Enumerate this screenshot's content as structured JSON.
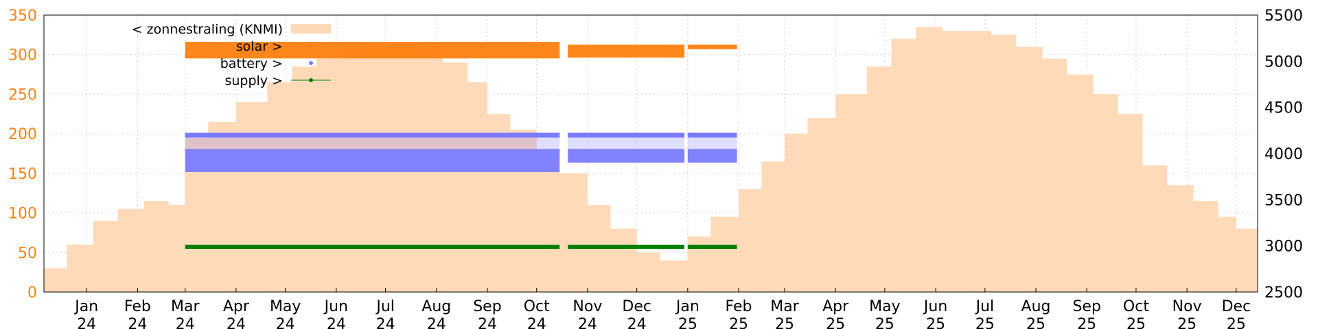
{
  "chart_data": {
    "type": "area",
    "grid": true,
    "legend_position": "top-left",
    "y_left": {
      "range": [
        0,
        350
      ],
      "ticks": [
        0,
        50,
        100,
        150,
        200,
        250,
        300,
        350
      ],
      "color": "#ff7f0e"
    },
    "y_right": {
      "range": [
        2500,
        5500
      ],
      "ticks": [
        2500,
        3000,
        3500,
        4000,
        4500,
        5000,
        5500
      ],
      "color": "#000000"
    },
    "x_ticks": [
      {
        "month": "Jan",
        "year": "24"
      },
      {
        "month": "Feb",
        "year": "24"
      },
      {
        "month": "Mar",
        "year": "24"
      },
      {
        "month": "Apr",
        "year": "24"
      },
      {
        "month": "May",
        "year": "24"
      },
      {
        "month": "Jun",
        "year": "24"
      },
      {
        "month": "Jul",
        "year": "24"
      },
      {
        "month": "Aug",
        "year": "24"
      },
      {
        "month": "Sep",
        "year": "24"
      },
      {
        "month": "Oct",
        "year": "24"
      },
      {
        "month": "Nov",
        "year": "24"
      },
      {
        "month": "Dec",
        "year": "24"
      },
      {
        "month": "Jan",
        "year": "25"
      },
      {
        "month": "Feb",
        "year": "25"
      },
      {
        "month": "Mar",
        "year": "25"
      },
      {
        "month": "Apr",
        "year": "25"
      },
      {
        "month": "May",
        "year": "25"
      },
      {
        "month": "Jun",
        "year": "25"
      },
      {
        "month": "Jul",
        "year": "25"
      },
      {
        "month": "Aug",
        "year": "25"
      },
      {
        "month": "Sep",
        "year": "25"
      },
      {
        "month": "Oct",
        "year": "25"
      },
      {
        "month": "Nov",
        "year": "25"
      },
      {
        "month": "Dec",
        "year": "25"
      }
    ],
    "x_range": [
      "2023-12-06",
      "2025-12-14"
    ],
    "series": [
      {
        "name": "< zonnestraling (KNMI)",
        "kind": "area",
        "axis": "left",
        "color": "#ffdab9",
        "points": [
          {
            "date": "2023-12-06",
            "value": 30
          },
          {
            "date": "2023-12-20",
            "value": 60
          },
          {
            "date": "2024-01-05",
            "value": 90
          },
          {
            "date": "2024-01-20",
            "value": 105
          },
          {
            "date": "2024-02-05",
            "value": 115
          },
          {
            "date": "2024-02-20",
            "value": 110
          },
          {
            "date": "2024-03-01",
            "value": 195
          },
          {
            "date": "2024-03-15",
            "value": 215
          },
          {
            "date": "2024-04-01",
            "value": 240
          },
          {
            "date": "2024-04-20",
            "value": 265
          },
          {
            "date": "2024-05-05",
            "value": 285
          },
          {
            "date": "2024-05-20",
            "value": 295
          },
          {
            "date": "2024-06-05",
            "value": 305
          },
          {
            "date": "2024-06-20",
            "value": 310
          },
          {
            "date": "2024-07-05",
            "value": 315
          },
          {
            "date": "2024-07-20",
            "value": 305
          },
          {
            "date": "2024-08-05",
            "value": 290
          },
          {
            "date": "2024-08-20",
            "value": 265
          },
          {
            "date": "2024-09-01",
            "value": 225
          },
          {
            "date": "2024-09-15",
            "value": 205
          },
          {
            "date": "2024-10-01",
            "value": 170
          },
          {
            "date": "2024-10-15",
            "value": 150
          },
          {
            "date": "2024-11-01",
            "value": 110
          },
          {
            "date": "2024-11-15",
            "value": 80
          },
          {
            "date": "2024-12-01",
            "value": 50
          },
          {
            "date": "2024-12-15",
            "value": 40
          },
          {
            "date": "2025-01-01",
            "value": 70
          },
          {
            "date": "2025-01-15",
            "value": 95
          },
          {
            "date": "2025-02-01",
            "value": 130
          },
          {
            "date": "2025-02-15",
            "value": 165
          },
          {
            "date": "2025-03-01",
            "value": 200
          },
          {
            "date": "2025-03-15",
            "value": 220
          },
          {
            "date": "2025-04-01",
            "value": 250
          },
          {
            "date": "2025-04-20",
            "value": 285
          },
          {
            "date": "2025-05-05",
            "value": 320
          },
          {
            "date": "2025-05-20",
            "value": 335
          },
          {
            "date": "2025-06-05",
            "value": 330
          },
          {
            "date": "2025-06-20",
            "value": 330
          },
          {
            "date": "2025-07-05",
            "value": 325
          },
          {
            "date": "2025-07-20",
            "value": 310
          },
          {
            "date": "2025-08-05",
            "value": 295
          },
          {
            "date": "2025-08-20",
            "value": 275
          },
          {
            "date": "2025-09-05",
            "value": 250
          },
          {
            "date": "2025-09-20",
            "value": 225
          },
          {
            "date": "2025-10-05",
            "value": 160
          },
          {
            "date": "2025-10-20",
            "value": 135
          },
          {
            "date": "2025-11-05",
            "value": 115
          },
          {
            "date": "2025-11-20",
            "value": 95
          },
          {
            "date": "2025-12-01",
            "value": 80
          },
          {
            "date": "2025-12-14",
            "value": 75
          }
        ]
      },
      {
        "name": "solar >",
        "kind": "band",
        "axis": "right",
        "color": "#ff7f0e",
        "segments": [
          {
            "start": "2024-03-01",
            "end": "2024-10-15",
            "low": 5030,
            "high": 5210
          },
          {
            "start": "2024-10-20",
            "end": "2024-12-30",
            "low": 5040,
            "high": 5180
          },
          {
            "start": "2025-01-01",
            "end": "2025-01-31",
            "low": 5130,
            "high": 5180
          }
        ]
      },
      {
        "name": "battery >",
        "kind": "band",
        "axis": "right",
        "color": "#7b7bff",
        "top_line": 4200,
        "segments": [
          {
            "start": "2024-03-01",
            "end": "2024-10-15",
            "low": 3800,
            "high": 4050
          },
          {
            "start": "2024-10-20",
            "end": "2024-12-30",
            "low": 3900,
            "high": 4050
          },
          {
            "start": "2025-01-01",
            "end": "2025-01-31",
            "low": 3900,
            "high": 4050
          }
        ]
      },
      {
        "name": "supply >",
        "kind": "line",
        "axis": "right",
        "color": "#008000",
        "segments": [
          {
            "start": "2024-03-01",
            "end": "2024-10-15",
            "value": 2990
          },
          {
            "start": "2024-10-20",
            "end": "2024-12-30",
            "value": 2990
          },
          {
            "start": "2025-01-01",
            "end": "2025-01-31",
            "value": 2990
          }
        ]
      }
    ]
  }
}
